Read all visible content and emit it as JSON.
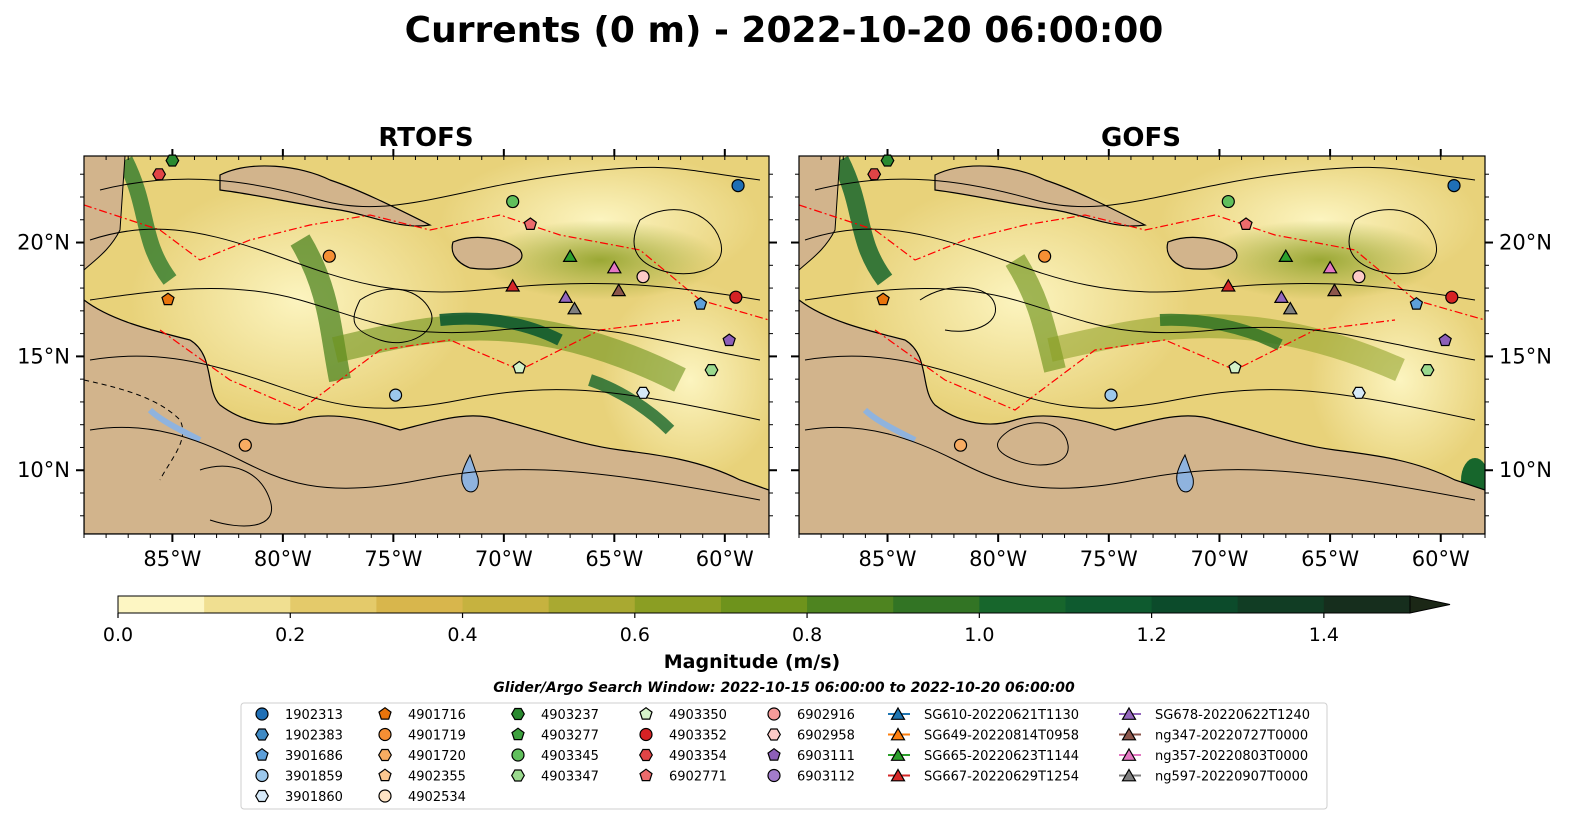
{
  "title": "Currents (0 m) - 2022-10-20 06:00:00",
  "panels": [
    {
      "name": "RTOFS"
    },
    {
      "name": "GOFS"
    }
  ],
  "map_extent": {
    "lon_min": -89,
    "lon_max": -58,
    "lat_min": 7.2,
    "lat_max": 23.8
  },
  "lat_ticks": [
    {
      "value": 20,
      "label": "20°N"
    },
    {
      "value": 15,
      "label": "15°N"
    },
    {
      "value": 10,
      "label": "10°N"
    }
  ],
  "lon_ticks": [
    {
      "value": -85,
      "label": "85°W"
    },
    {
      "value": -80,
      "label": "80°W"
    },
    {
      "value": -75,
      "label": "75°W"
    },
    {
      "value": -70,
      "label": "70°W"
    },
    {
      "value": -65,
      "label": "65°W"
    },
    {
      "value": -60,
      "label": "60°W"
    }
  ],
  "colorbar": {
    "label": "Magnitude (m/s)",
    "min": 0.0,
    "max": 1.5,
    "step": 0.1,
    "extend": "max",
    "tick_values": [
      0.0,
      0.2,
      0.4,
      0.6,
      0.8,
      1.0,
      1.2,
      1.4
    ],
    "tick_labels": [
      "0.0",
      "0.2",
      "0.4",
      "0.6",
      "0.8",
      "1.0",
      "1.2",
      "1.4"
    ],
    "colors": [
      "#fdf6c3",
      "#f0df91",
      "#e4ca6a",
      "#d8b64c",
      "#c6b23f",
      "#a9a931",
      "#8b9e23",
      "#6e931c",
      "#4e8420",
      "#327424",
      "#17662c",
      "#0e5a2f",
      "#0c4b2b",
      "#113d24",
      "#162e1d",
      "#1b2716"
    ]
  },
  "search_window": "Glider/Argo Search Window: 2022-10-15 06:00:00 to 2022-10-20 06:00:00",
  "legend": {
    "columns": [
      [
        {
          "label": "1902313",
          "marker": "circle",
          "color": "#1f6fb5"
        },
        {
          "label": "1902383",
          "marker": "hexagon",
          "color": "#3f8ac4"
        },
        {
          "label": "3901686",
          "marker": "pentagon",
          "color": "#5d9fd9"
        },
        {
          "label": "3901859",
          "marker": "circle",
          "color": "#9cc8ec"
        },
        {
          "label": "3901860",
          "marker": "hexagon",
          "color": "#d6e9f8"
        }
      ],
      [
        {
          "label": "4901716",
          "marker": "pentagon",
          "color": "#e8740c"
        },
        {
          "label": "4901719",
          "marker": "circle",
          "color": "#f58f34"
        },
        {
          "label": "4901720",
          "marker": "hexagon",
          "color": "#f8ac62"
        },
        {
          "label": "4902355",
          "marker": "pentagon",
          "color": "#fbc790"
        },
        {
          "label": "4902534",
          "marker": "circle",
          "color": "#fde3c4"
        }
      ],
      [
        {
          "label": "4903237",
          "marker": "hexagon",
          "color": "#2a8a30"
        },
        {
          "label": "4903277",
          "marker": "pentagon",
          "color": "#3ea23f"
        },
        {
          "label": "4903345",
          "marker": "circle",
          "color": "#60bf5c"
        },
        {
          "label": "4903347",
          "marker": "hexagon",
          "color": "#9ad98e"
        }
      ],
      [
        {
          "label": "4903350",
          "marker": "pentagon",
          "color": "#d5f2c9"
        },
        {
          "label": "4903352",
          "marker": "circle",
          "color": "#d62224"
        },
        {
          "label": "4903354",
          "marker": "hexagon",
          "color": "#e04446"
        },
        {
          "label": "6902771",
          "marker": "pentagon",
          "color": "#ec6b6c"
        }
      ],
      [
        {
          "label": "6902916",
          "marker": "circle",
          "color": "#f59b99"
        },
        {
          "label": "6902958",
          "marker": "hexagon",
          "color": "#fccac7"
        },
        {
          "label": "6903111",
          "marker": "pentagon",
          "color": "#8d5fb8"
        },
        {
          "label": "6903112",
          "marker": "circle",
          "color": "#a27ccb"
        }
      ],
      [
        {
          "label": "SG610-20220621T1130",
          "marker": "triangle",
          "color": "#1f77b4"
        },
        {
          "label": "SG649-20220814T0958",
          "marker": "triangle",
          "color": "#ff7f0e"
        },
        {
          "label": "SG665-20220623T1144",
          "marker": "triangle",
          "color": "#2ca02c"
        },
        {
          "label": "SG667-20220629T1254",
          "marker": "triangle",
          "color": "#d62728"
        }
      ],
      [
        {
          "label": "SG678-20220622T1240",
          "marker": "triangle",
          "color": "#9467bd"
        },
        {
          "label": "ng347-20220727T0000",
          "marker": "triangle",
          "color": "#8c564b"
        },
        {
          "label": "ng357-20220803T0000",
          "marker": "triangle",
          "color": "#e377c2"
        },
        {
          "label": "ng597-20220907T0000",
          "marker": "triangle",
          "color": "#7f7f7f"
        }
      ]
    ]
  },
  "platforms": [
    {
      "marker": "circle",
      "color": "#1f6fb5",
      "lon": -59.4,
      "lat": 22.5
    },
    {
      "marker": "hexagon",
      "color": "#2a8a30",
      "lon": -85.0,
      "lat": 23.6
    },
    {
      "marker": "hexagon",
      "color": "#e04446",
      "lon": -85.6,
      "lat": 23.0
    },
    {
      "marker": "circle",
      "color": "#60bf5c",
      "lon": -69.6,
      "lat": 21.8
    },
    {
      "marker": "pentagon",
      "color": "#ec6b6c",
      "lon": -68.8,
      "lat": 20.8
    },
    {
      "marker": "circle",
      "color": "#f58f34",
      "lon": -77.9,
      "lat": 19.4
    },
    {
      "marker": "pentagon",
      "color": "#e8740c",
      "lon": -85.2,
      "lat": 17.5
    },
    {
      "marker": "triangle",
      "color": "#2ca02c",
      "lon": -67.0,
      "lat": 19.4
    },
    {
      "marker": "triangle",
      "color": "#e377c2",
      "lon": -65.0,
      "lat": 18.9
    },
    {
      "marker": "circle",
      "color": "#fccac7",
      "lon": -63.7,
      "lat": 18.5
    },
    {
      "marker": "triangle",
      "color": "#d62728",
      "lon": -69.6,
      "lat": 18.1
    },
    {
      "marker": "triangle",
      "color": "#9467bd",
      "lon": -67.2,
      "lat": 17.6
    },
    {
      "marker": "triangle",
      "color": "#7f7f7f",
      "lon": -66.8,
      "lat": 17.1
    },
    {
      "marker": "triangle",
      "color": "#8c564b",
      "lon": -64.8,
      "lat": 17.9
    },
    {
      "marker": "pentagon",
      "color": "#5d9fd9",
      "lon": -61.1,
      "lat": 17.3
    },
    {
      "marker": "circle",
      "color": "#d62224",
      "lon": -59.5,
      "lat": 17.6
    },
    {
      "marker": "pentagon",
      "color": "#8d5fb8",
      "lon": -59.8,
      "lat": 15.7
    },
    {
      "marker": "hexagon",
      "color": "#9ad98e",
      "lon": -60.6,
      "lat": 14.4
    },
    {
      "marker": "pentagon",
      "color": "#d5f2c9",
      "lon": -69.3,
      "lat": 14.5
    },
    {
      "marker": "hexagon",
      "color": "#d6e9f8",
      "lon": -63.7,
      "lat": 13.4
    },
    {
      "marker": "circle",
      "color": "#9cc8ec",
      "lon": -74.9,
      "lat": 13.3
    },
    {
      "marker": "circle",
      "color": "#f8ac62",
      "lon": -81.7,
      "lat": 11.1
    }
  ]
}
